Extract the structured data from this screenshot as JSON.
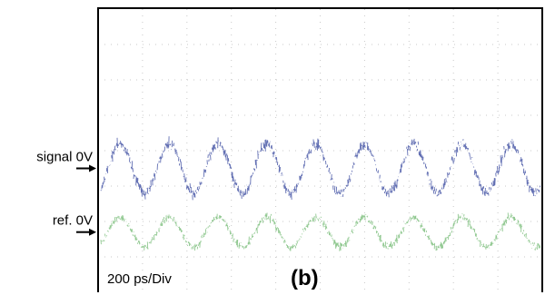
{
  "chart_data": {
    "type": "line",
    "title": "",
    "xlabel": "",
    "ylabel": "",
    "grid": true,
    "timebase_label": "200 ps/Div",
    "panel_label": "(b)",
    "x_divisions": 10,
    "y_divisions": 8,
    "series": [
      {
        "name": "signal",
        "marker_label": "signal 0V",
        "color": "#2e3f9a",
        "offset_div": 3.5,
        "amplitude_div": 0.7,
        "noise_div": 0.28,
        "period_div": 1.1,
        "phase_div": 0.22
      },
      {
        "name": "ref.",
        "marker_label": "ref. 0V",
        "color": "#6bb56b",
        "offset_div": 1.7,
        "amplitude_div": 0.42,
        "noise_div": 0.2,
        "period_div": 1.1,
        "phase_div": 0.22
      }
    ]
  }
}
